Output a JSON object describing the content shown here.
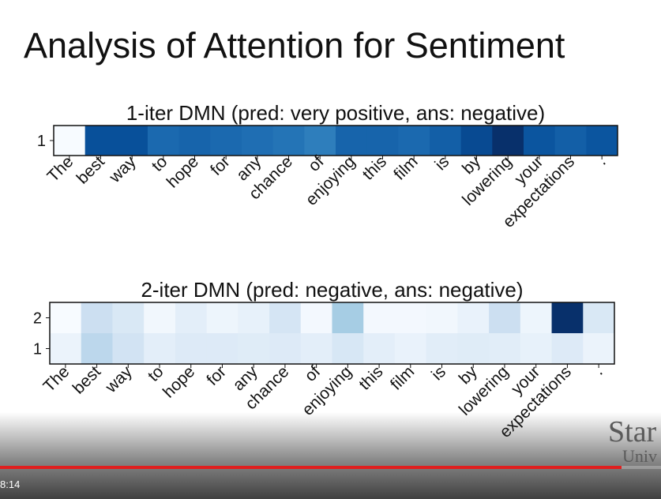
{
  "slide": {
    "title": "Analysis of Attention for Sentiment"
  },
  "chart_data": [
    {
      "type": "heatmap",
      "title": "1-iter DMN (pred: very positive, ans: negative)",
      "x": [
        "The",
        "best",
        "way",
        "to",
        "hope",
        "for",
        "any",
        "chance",
        "of",
        "enjoying",
        "this",
        "film",
        "is",
        "by",
        "lowering",
        "your",
        "expectations",
        "."
      ],
      "rows": [
        "1"
      ],
      "colormap": "Blues",
      "values": [
        [
          0.0,
          0.88,
          0.88,
          0.78,
          0.8,
          0.78,
          0.76,
          0.74,
          0.7,
          0.8,
          0.8,
          0.78,
          0.82,
          0.9,
          1.0,
          0.86,
          0.82,
          0.86
        ]
      ]
    },
    {
      "type": "heatmap",
      "title": "2-iter DMN (pred: negative, ans: negative)",
      "x": [
        "The",
        "best",
        "way",
        "to",
        "hope",
        "for",
        "any",
        "chance",
        "of",
        "enjoying",
        "this",
        "film",
        "is",
        "by",
        "lowering",
        "your",
        "expectations",
        "."
      ],
      "rows": [
        "2",
        "1"
      ],
      "colormap": "Blues",
      "values": [
        [
          0.0,
          0.22,
          0.15,
          0.03,
          0.1,
          0.05,
          0.08,
          0.17,
          0.02,
          0.35,
          0.02,
          0.02,
          0.03,
          0.07,
          0.22,
          0.05,
          1.0,
          0.15
        ],
        [
          0.06,
          0.28,
          0.19,
          0.1,
          0.13,
          0.13,
          0.12,
          0.13,
          0.1,
          0.16,
          0.1,
          0.07,
          0.11,
          0.12,
          0.11,
          0.08,
          0.13,
          0.06
        ]
      ]
    }
  ],
  "video": {
    "timestamp": "8:14",
    "progress": 0.94,
    "progress_color": "#e01f1f",
    "logo_line1": "Star",
    "logo_line2": "Univ"
  }
}
